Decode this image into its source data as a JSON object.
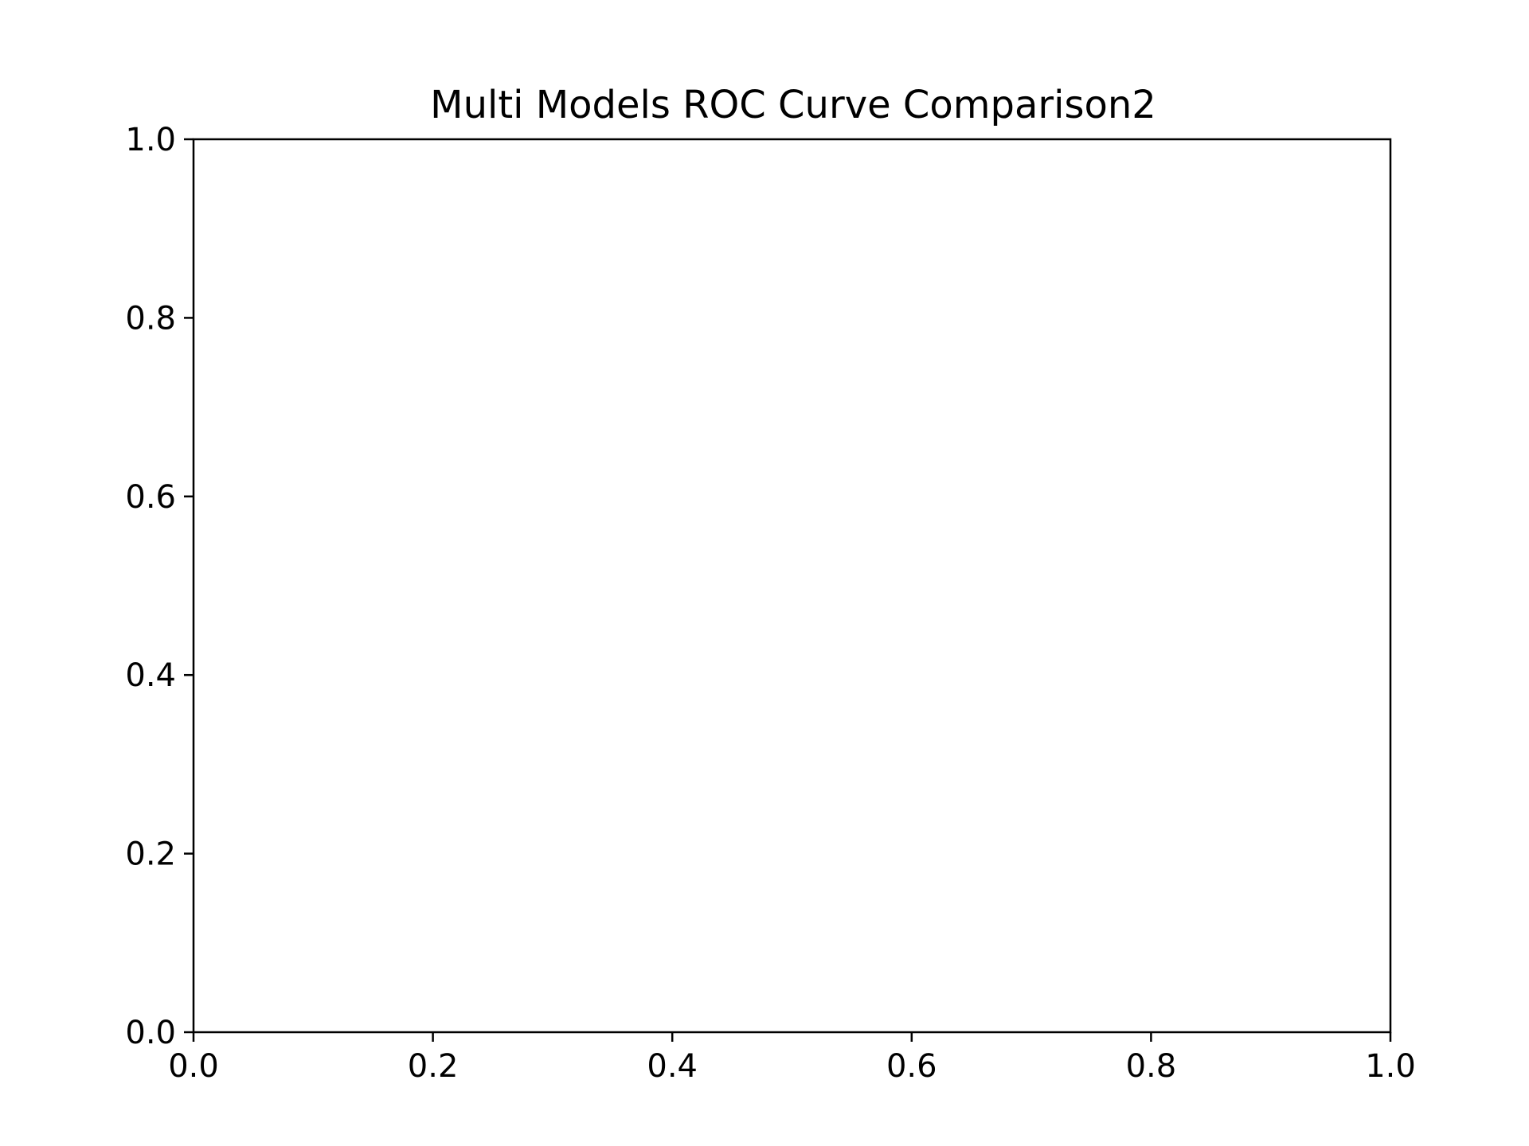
{
  "chart_data": {
    "type": "line",
    "title": "Multi Models ROC Curve Comparison2",
    "xlabel": "",
    "ylabel": "",
    "xlim": [
      0.0,
      1.0
    ],
    "ylim": [
      0.0,
      1.0
    ],
    "x_ticks": [
      0.0,
      0.2,
      0.4,
      0.6,
      0.8,
      1.0
    ],
    "y_ticks": [
      0.0,
      0.2,
      0.4,
      0.6,
      0.8,
      1.0
    ],
    "x_tick_labels": [
      "0.0",
      "0.2",
      "0.4",
      "0.6",
      "0.8",
      "1.0"
    ],
    "y_tick_labels": [
      "0.0",
      "0.2",
      "0.4",
      "0.6",
      "0.8",
      "1.0"
    ],
    "grid": false,
    "series": []
  },
  "colors": {
    "axis": "#000000",
    "background": "#ffffff"
  }
}
